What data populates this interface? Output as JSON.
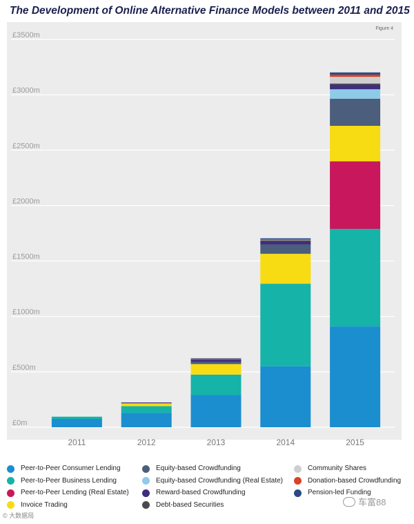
{
  "chart_data": {
    "type": "bar",
    "stacked": true,
    "title": "The Development of Online Alternative Finance Models between 2011 and 2015",
    "figure_label": "Figure 4",
    "categories": [
      "2011",
      "2012",
      "2013",
      "2014",
      "2015"
    ],
    "ylim": [
      0,
      3500
    ],
    "y_ticks": [
      {
        "value": 0,
        "label": "£0m"
      },
      {
        "value": 500,
        "label": "£500m"
      },
      {
        "value": 1000,
        "label": "£1000m"
      },
      {
        "value": 1500,
        "label": "£1500m"
      },
      {
        "value": 2000,
        "label": "£2000m"
      },
      {
        "value": 2500,
        "label": "£2500m"
      },
      {
        "value": 3000,
        "label": "£3000m"
      },
      {
        "value": 3500,
        "label": "£3500m"
      }
    ],
    "grid": true,
    "legend_position": "bottom",
    "series": [
      {
        "name": "Peer-to-Peer Consumer Lending",
        "color": "#1b8ed0",
        "values": [
          75,
          130,
          290,
          550,
          910
        ]
      },
      {
        "name": "Peer-to-Peer Business Lending",
        "color": "#16b3a8",
        "values": [
          20,
          60,
          185,
          745,
          880
        ]
      },
      {
        "name": "Peer-to-Peer Lending (Real Estate)",
        "color": "#c8175c",
        "values": [
          0,
          0,
          0,
          0,
          610
        ]
      },
      {
        "name": "Invoice Trading",
        "color": "#f7dc13",
        "values": [
          0,
          25,
          95,
          270,
          320
        ]
      },
      {
        "name": "Equity-based Crowdfunding",
        "color": "#4b5e7c",
        "values": [
          0,
          4,
          20,
          85,
          245
        ]
      },
      {
        "name": "Equity-based Crowdfunding (Real Estate)",
        "color": "#8ecbe8",
        "values": [
          0,
          0,
          0,
          0,
          85
        ]
      },
      {
        "name": "Reward-based Crowdfunding",
        "color": "#3f2d7d",
        "values": [
          0,
          5,
          20,
          30,
          42
        ]
      },
      {
        "name": "Debt-based Securities",
        "color": "#4a4a4a",
        "values": [
          0,
          0,
          5,
          8,
          10
        ]
      },
      {
        "name": "Community Shares",
        "color": "#cfcfcf",
        "values": [
          0,
          0,
          2,
          5,
          60
        ]
      },
      {
        "name": "Donation-based Crowdfunding",
        "color": "#d94225",
        "values": [
          0,
          0,
          1,
          2,
          20
        ]
      },
      {
        "name": "Pension-led Funding",
        "color": "#2a4a86",
        "values": [
          0,
          0,
          4,
          10,
          20
        ]
      }
    ]
  },
  "watermarks": {
    "left": "大数据局",
    "right": "车富88"
  }
}
